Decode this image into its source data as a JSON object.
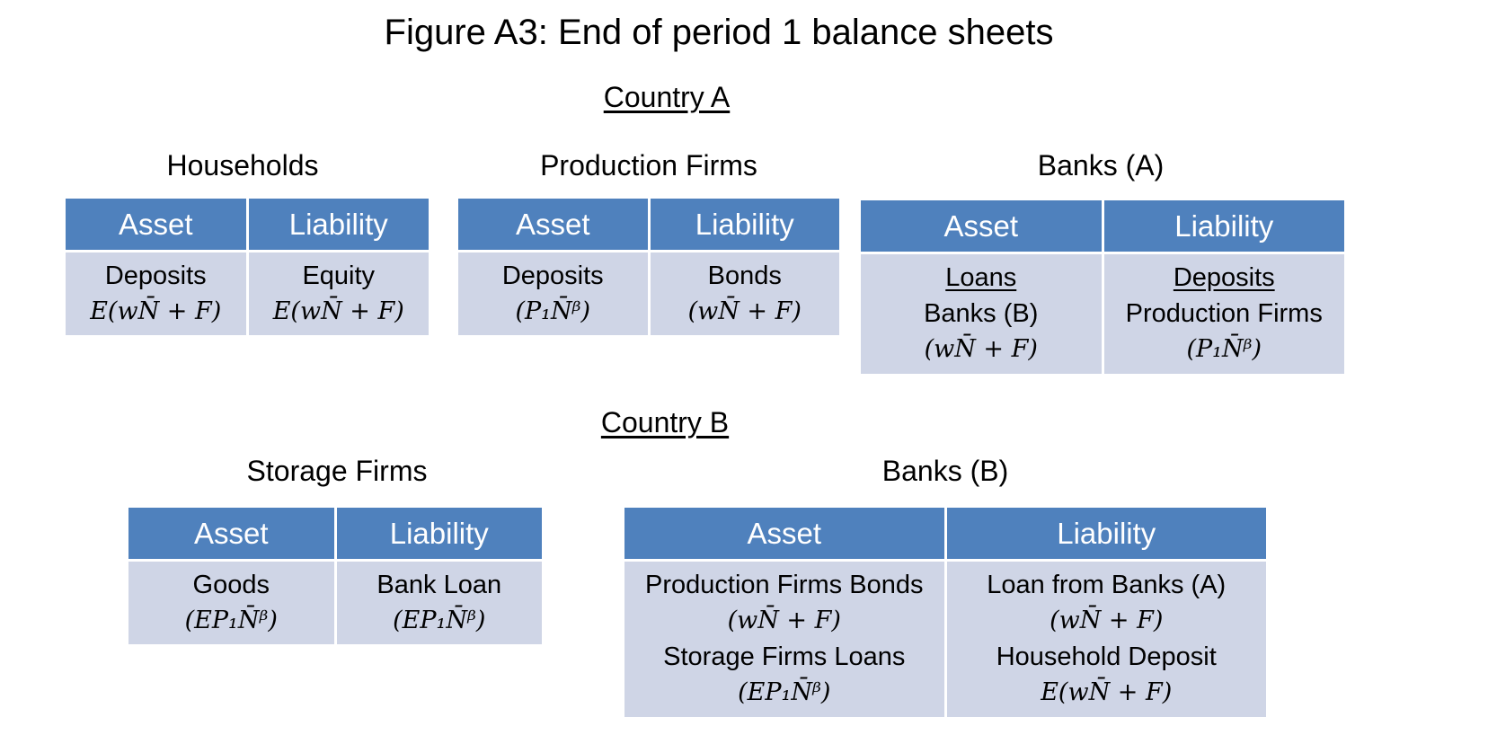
{
  "title": "Figure A3: End of period 1 balance sheets",
  "country_a": {
    "heading": "Country A",
    "households": {
      "caption": "Households",
      "asset_header": "Asset",
      "liability_header": "Liability",
      "asset_lines": [
        "Deposits",
        "E(wN̄ + F)"
      ],
      "liability_lines": [
        "Equity",
        "E(wN̄ + F)"
      ]
    },
    "production_firms": {
      "caption": "Production Firms",
      "asset_header": "Asset",
      "liability_header": "Liability",
      "asset_lines": [
        "Deposits",
        "(P₁N̄ᵝ)"
      ],
      "liability_lines": [
        "Bonds",
        "(wN̄ + F)"
      ]
    },
    "banks_a": {
      "caption": "Banks (A)",
      "asset_header": "Asset",
      "liability_header": "Liability",
      "asset_lines": [
        "Loans",
        "Banks (B)",
        "(wN̄ + F)"
      ],
      "liability_lines": [
        "Deposits",
        "Production Firms",
        "(P₁N̄ᵝ)"
      ]
    }
  },
  "country_b": {
    "heading": "Country B",
    "storage_firms": {
      "caption": "Storage Firms",
      "asset_header": "Asset",
      "liability_header": "Liability",
      "asset_lines": [
        "Goods",
        "(EP₁N̄ᵝ)"
      ],
      "liability_lines": [
        "Bank Loan",
        "(EP₁N̄ᵝ)"
      ]
    },
    "banks_b": {
      "caption": "Banks (B)",
      "asset_header": "Asset",
      "liability_header": "Liability",
      "asset_lines": [
        "Production Firms Bonds",
        "(wN̄ + F)",
        "Storage Firms Loans",
        "(EP₁N̄ᵝ)"
      ],
      "liability_lines": [
        "Loan from Banks (A)",
        "(wN̄ + F)",
        "Household Deposit",
        "E(wN̄ + F)"
      ]
    }
  }
}
